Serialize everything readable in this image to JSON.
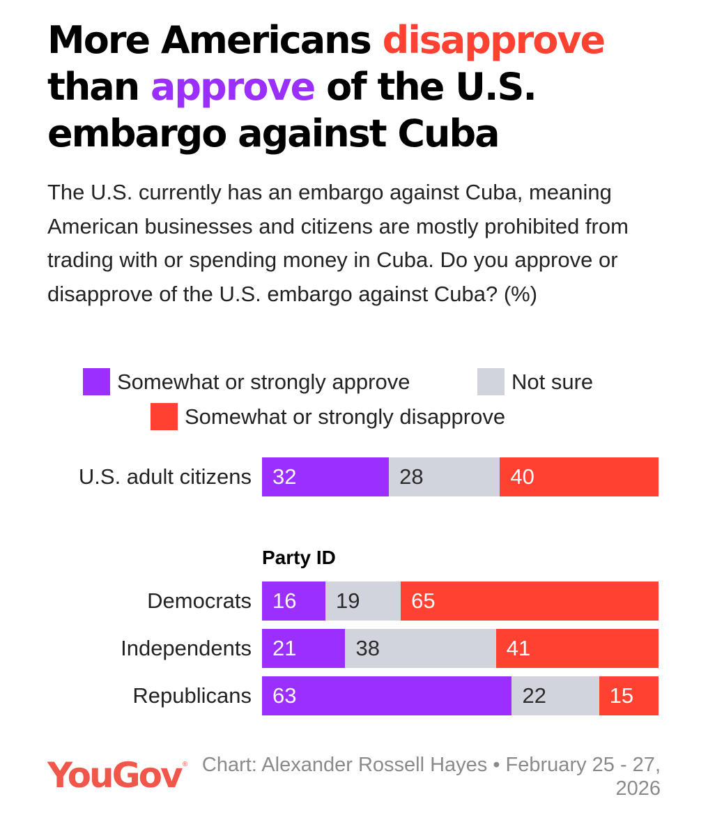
{
  "title": {
    "part1": "More Americans ",
    "part2": "disapprove",
    "part3": " than ",
    "part4": "approve",
    "part5": " of the U.S. embargo against Cuba"
  },
  "subtitle": "The U.S. currently has an embargo against Cuba, meaning American businesses and citizens are mostly prohibited from trading with or spending money in Cuba. Do you approve or disapprove of the U.S. embargo against Cuba? (%)",
  "colors": {
    "approve": "#9b2ffd",
    "not_sure": "#d1d4dc",
    "disapprove": "#fe4130"
  },
  "chart_data": {
    "type": "bar",
    "orientation": "horizontal",
    "stacked": true,
    "xlim": [
      0,
      100
    ],
    "series_names": [
      "Somewhat or strongly approve",
      "Not sure",
      "Somewhat or strongly disapprove"
    ],
    "group_label": "Party ID",
    "rows": [
      {
        "label": "U.S. adult citizens",
        "values": [
          32,
          28,
          40
        ]
      },
      {
        "label": "Democrats",
        "values": [
          16,
          19,
          65
        ]
      },
      {
        "label": "Independents",
        "values": [
          21,
          38,
          41
        ]
      },
      {
        "label": "Republicans",
        "values": [
          63,
          22,
          15
        ]
      }
    ]
  },
  "logo": "YouGov",
  "registered_mark": "®",
  "credit": "Chart: Alexander Rossell Hayes • February 25 - 27, 2026"
}
